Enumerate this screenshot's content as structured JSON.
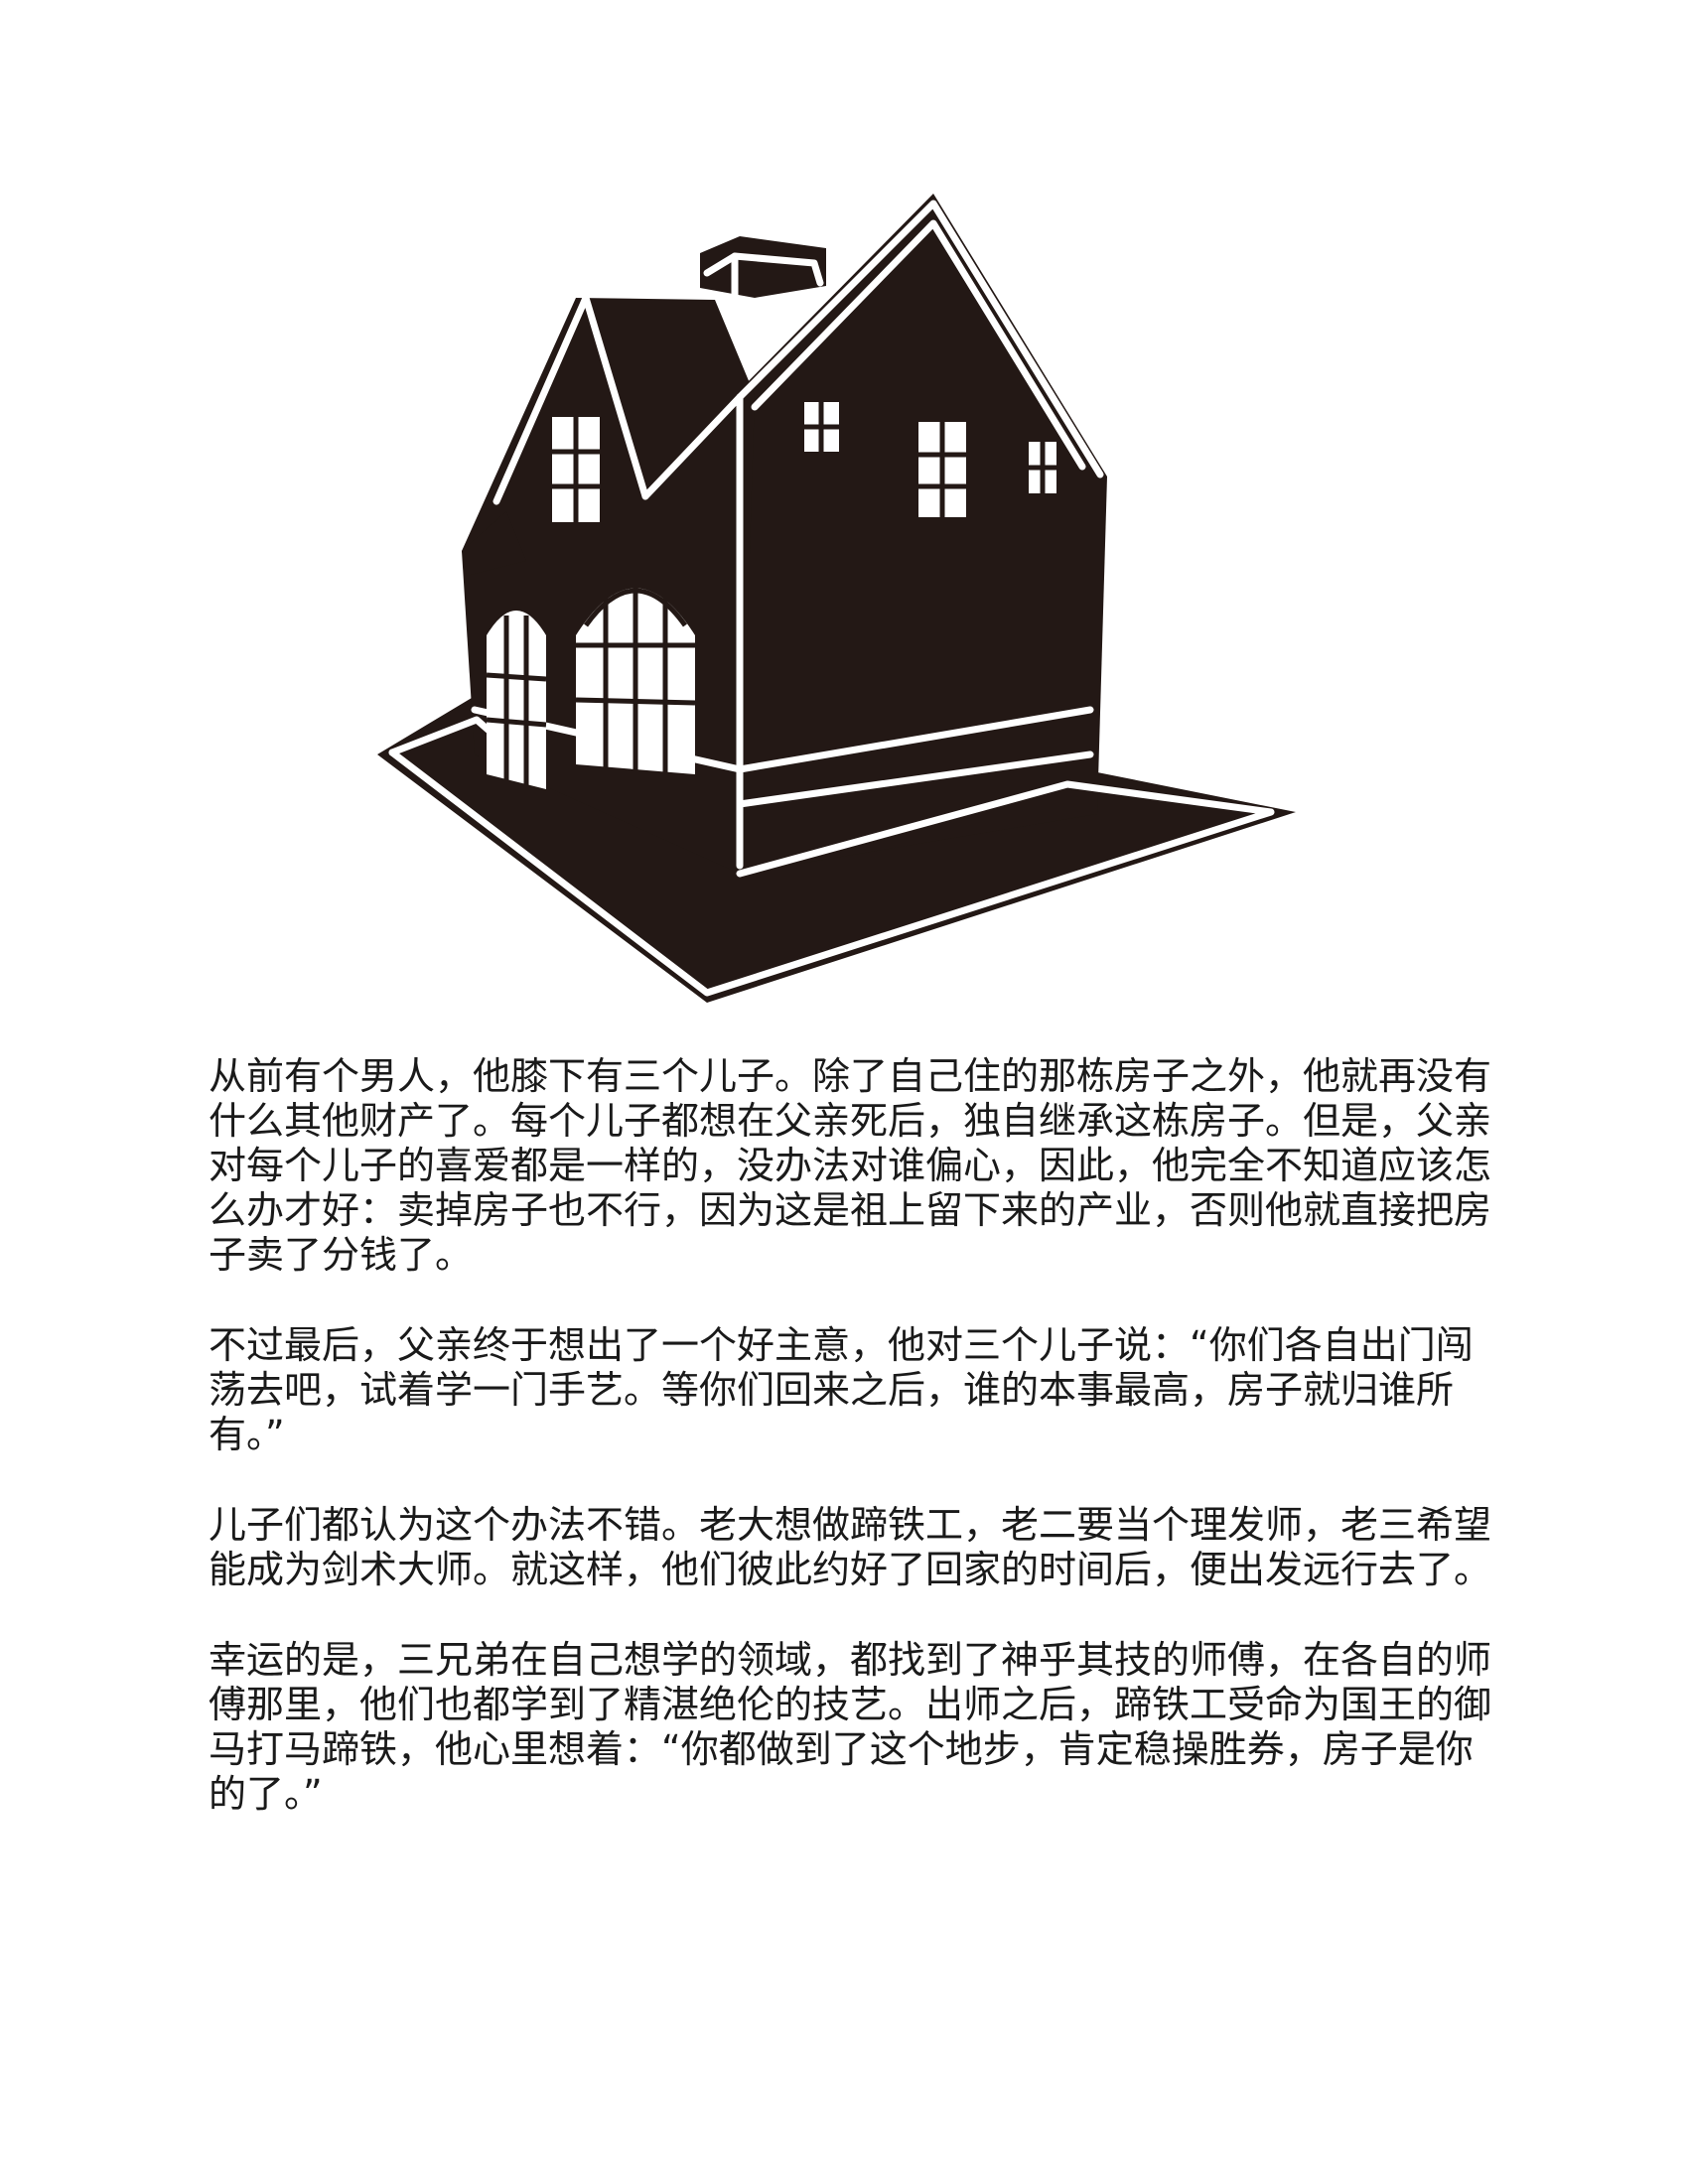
{
  "illustration": {
    "icon": "house-icon",
    "color": "#231815"
  },
  "story": {
    "paragraphs": [
      "从前有个男人，他膝下有三个儿子。除了自己住的那栋房子之外，他就再没有什么其他财产了。每个儿子都想在父亲死后，独自继承这栋房子。但是，父亲对每个儿子的喜爱都是一样的，没办法对谁偏心，因此，他完全不知道应该怎么办才好：卖掉房子也不行，因为这是祖上留下来的产业，否则他就直接把房子卖了分钱了。",
      "不过最后，父亲终于想出了一个好主意，他对三个儿子说：“你们各自出门闯荡去吧，试着学一门手艺。等你们回来之后，谁的本事最高，房子就归谁所有。”",
      "儿子们都认为这个办法不错。老大想做蹄铁工，老二要当个理发师，老三希望能成为剑术大师。就这样，他们彼此约好了回家的时间后，便出发远行去了。",
      "幸运的是，三兄弟在自己想学的领域，都找到了神乎其技的师傅，在各自的师傅那里，他们也都学到了精湛绝伦的技艺。出师之后，蹄铁工受命为国王的御马打马蹄铁，他心里想着：“你都做到了这个地步，肯定稳操胜券，房子是你的了。”"
    ]
  }
}
